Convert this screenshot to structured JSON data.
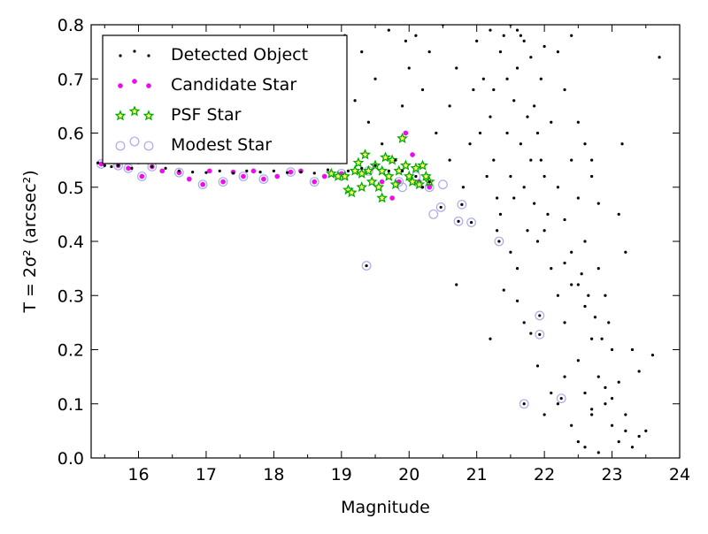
{
  "chart_data": {
    "type": "scatter",
    "xlabel": "Magnitude",
    "ylabel": "T = 2σ² (arcsec²)",
    "xlim": [
      15.3,
      24
    ],
    "ylim": [
      0.0,
      0.8
    ],
    "xticks": [
      "16",
      "17",
      "18",
      "19",
      "20",
      "21",
      "22",
      "23",
      "24"
    ],
    "yticks": [
      "0.0",
      "0.1",
      "0.2",
      "0.3",
      "0.4",
      "0.5",
      "0.6",
      "0.7",
      "0.8"
    ],
    "grid": false,
    "legend_position": "top-left",
    "series": [
      {
        "name": "Detected Object",
        "marker": "dot",
        "color": "#000000",
        "points": [
          [
            15.4,
            0.545
          ],
          [
            15.5,
            0.54
          ],
          [
            15.6,
            0.538
          ],
          [
            15.7,
            0.54
          ],
          [
            15.9,
            0.535
          ],
          [
            16.0,
            0.545
          ],
          [
            16.2,
            0.538
          ],
          [
            16.4,
            0.535
          ],
          [
            16.6,
            0.53
          ],
          [
            16.8,
            0.528
          ],
          [
            17.0,
            0.527
          ],
          [
            17.2,
            0.53
          ],
          [
            17.4,
            0.526
          ],
          [
            17.6,
            0.53
          ],
          [
            17.8,
            0.528
          ],
          [
            18.0,
            0.53
          ],
          [
            18.2,
            0.527
          ],
          [
            18.4,
            0.528
          ],
          [
            18.6,
            0.526
          ],
          [
            18.8,
            0.532
          ],
          [
            19.1,
            0.53
          ],
          [
            19.3,
            0.535
          ],
          [
            19.5,
            0.54
          ],
          [
            19.7,
            0.53
          ],
          [
            19.9,
            0.53
          ],
          [
            20.1,
            0.52
          ],
          [
            20.2,
            0.5
          ],
          [
            20.3,
            0.51
          ],
          [
            19.05,
            0.78
          ],
          [
            19.3,
            0.75
          ],
          [
            19.5,
            0.7
          ],
          [
            19.7,
            0.79
          ],
          [
            19.2,
            0.66
          ],
          [
            19.4,
            0.62
          ],
          [
            19.6,
            0.58
          ],
          [
            19.8,
            0.55
          ],
          [
            19.9,
            0.65
          ],
          [
            20.0,
            0.72
          ],
          [
            19.95,
            0.77
          ],
          [
            20.1,
            0.78
          ],
          [
            20.3,
            0.75
          ],
          [
            20.5,
            0.8
          ],
          [
            20.2,
            0.68
          ],
          [
            20.4,
            0.6
          ],
          [
            20.6,
            0.55
          ],
          [
            20.6,
            0.65
          ],
          [
            20.7,
            0.72
          ],
          [
            20.8,
            0.5
          ],
          [
            20.9,
            0.58
          ],
          [
            20.95,
            0.68
          ],
          [
            21.0,
            0.77
          ],
          [
            21.1,
            0.7
          ],
          [
            21.2,
            0.63
          ],
          [
            21.25,
            0.55
          ],
          [
            21.3,
            0.48
          ],
          [
            21.35,
            0.75
          ],
          [
            21.4,
            0.78
          ],
          [
            21.45,
            0.6
          ],
          [
            21.5,
            0.52
          ],
          [
            21.55,
            0.66
          ],
          [
            21.6,
            0.72
          ],
          [
            21.65,
            0.58
          ],
          [
            21.7,
            0.5
          ],
          [
            21.75,
            0.63
          ],
          [
            21.8,
            0.55
          ],
          [
            21.85,
            0.47
          ],
          [
            21.9,
            0.6
          ],
          [
            21.95,
            0.7
          ],
          [
            22.0,
            0.52
          ],
          [
            22.05,
            0.45
          ],
          [
            21.05,
            0.6
          ],
          [
            21.15,
            0.52
          ],
          [
            21.25,
            0.68
          ],
          [
            21.35,
            0.45
          ],
          [
            21.45,
            0.7
          ],
          [
            21.55,
            0.48
          ],
          [
            21.65,
            0.78
          ],
          [
            21.75,
            0.42
          ],
          [
            21.85,
            0.65
          ],
          [
            21.95,
            0.55
          ],
          [
            22.1,
            0.62
          ],
          [
            22.2,
            0.5
          ],
          [
            22.3,
            0.44
          ],
          [
            22.4,
            0.55
          ],
          [
            22.5,
            0.48
          ],
          [
            22.6,
            0.4
          ],
          [
            22.7,
            0.52
          ],
          [
            22.8,
            0.47
          ],
          [
            22.2,
            0.75
          ],
          [
            22.4,
            0.78
          ],
          [
            21.5,
            0.8
          ],
          [
            21.6,
            0.79
          ],
          [
            21.7,
            0.77
          ],
          [
            21.2,
            0.79
          ],
          [
            21.8,
            0.74
          ],
          [
            22.0,
            0.76
          ],
          [
            22.3,
            0.68
          ],
          [
            22.5,
            0.62
          ],
          [
            22.6,
            0.58
          ],
          [
            22.7,
            0.55
          ],
          [
            22.1,
            0.35
          ],
          [
            22.2,
            0.3
          ],
          [
            22.3,
            0.25
          ],
          [
            22.4,
            0.38
          ],
          [
            22.5,
            0.32
          ],
          [
            22.6,
            0.28
          ],
          [
            22.7,
            0.22
          ],
          [
            22.8,
            0.35
          ],
          [
            22.9,
            0.3
          ],
          [
            23.0,
            0.2
          ],
          [
            22.5,
            0.18
          ],
          [
            22.6,
            0.12
          ],
          [
            22.7,
            0.08
          ],
          [
            22.8,
            0.15
          ],
          [
            22.9,
            0.1
          ],
          [
            23.0,
            0.06
          ],
          [
            23.1,
            0.03
          ],
          [
            23.2,
            0.05
          ],
          [
            23.3,
            0.02
          ],
          [
            23.4,
            0.04
          ],
          [
            22.1,
            0.12
          ],
          [
            22.2,
            0.1
          ],
          [
            22.3,
            0.15
          ],
          [
            22.4,
            0.06
          ],
          [
            22.5,
            0.03
          ],
          [
            22.6,
            0.02
          ],
          [
            22.7,
            0.09
          ],
          [
            22.8,
            0.01
          ],
          [
            22.9,
            0.13
          ],
          [
            23.0,
            0.11
          ],
          [
            23.1,
            0.14
          ],
          [
            23.2,
            0.08
          ],
          [
            23.3,
            0.2
          ],
          [
            23.4,
            0.16
          ],
          [
            23.5,
            0.05
          ],
          [
            23.6,
            0.19
          ],
          [
            23.7,
            0.74
          ],
          [
            23.15,
            0.58
          ],
          [
            23.1,
            0.45
          ],
          [
            23.2,
            0.38
          ],
          [
            21.8,
            0.23
          ],
          [
            21.9,
            0.17
          ],
          [
            22.0,
            0.08
          ],
          [
            21.7,
            0.25
          ],
          [
            21.6,
            0.29
          ],
          [
            21.2,
            0.22
          ],
          [
            21.4,
            0.31
          ],
          [
            20.7,
            0.32
          ],
          [
            21.5,
            0.38
          ],
          [
            21.3,
            0.42
          ],
          [
            21.6,
            0.35
          ],
          [
            21.9,
            0.4
          ],
          [
            22.0,
            0.42
          ],
          [
            22.3,
            0.36
          ],
          [
            22.4,
            0.32
          ],
          [
            22.55,
            0.34
          ],
          [
            22.65,
            0.3
          ],
          [
            22.75,
            0.26
          ],
          [
            22.85,
            0.22
          ],
          [
            22.95,
            0.25
          ],
          [
            21.33,
            0.4
          ],
          [
            21.7,
            0.1
          ],
          [
            21.93,
            0.263
          ],
          [
            21.93,
            0.228
          ],
          [
            22.25,
            0.11
          ],
          [
            20.73,
            0.437
          ],
          [
            20.92,
            0.435
          ],
          [
            19.37,
            0.355
          ],
          [
            20.47,
            0.463
          ],
          [
            20.78,
            0.468
          ]
        ]
      },
      {
        "name": "Candidate Star",
        "marker": "circle",
        "color": "#ff00ff",
        "points": [
          [
            15.45,
            0.543
          ],
          [
            15.7,
            0.54
          ],
          [
            15.85,
            0.535
          ],
          [
            16.05,
            0.52
          ],
          [
            16.2,
            0.538
          ],
          [
            16.35,
            0.53
          ],
          [
            16.6,
            0.527
          ],
          [
            16.75,
            0.515
          ],
          [
            16.95,
            0.505
          ],
          [
            17.05,
            0.53
          ],
          [
            17.25,
            0.51
          ],
          [
            17.4,
            0.528
          ],
          [
            17.55,
            0.52
          ],
          [
            17.7,
            0.53
          ],
          [
            17.85,
            0.515
          ],
          [
            18.05,
            0.52
          ],
          [
            18.25,
            0.528
          ],
          [
            18.4,
            0.53
          ],
          [
            18.6,
            0.51
          ],
          [
            18.75,
            0.52
          ],
          [
            19.0,
            0.525
          ],
          [
            19.2,
            0.53
          ],
          [
            19.4,
            0.53
          ],
          [
            19.6,
            0.51
          ],
          [
            19.75,
            0.48
          ],
          [
            19.85,
            0.51
          ],
          [
            19.95,
            0.6
          ],
          [
            20.05,
            0.56
          ],
          [
            20.15,
            0.51
          ],
          [
            20.3,
            0.5
          ]
        ]
      },
      {
        "name": "PSF Star",
        "marker": "star",
        "color": "#00aa00",
        "points": [
          [
            18.85,
            0.525
          ],
          [
            18.95,
            0.52
          ],
          [
            19.05,
            0.52
          ],
          [
            19.1,
            0.495
          ],
          [
            19.15,
            0.49
          ],
          [
            19.2,
            0.53
          ],
          [
            19.25,
            0.545
          ],
          [
            19.3,
            0.525
          ],
          [
            19.35,
            0.56
          ],
          [
            19.4,
            0.53
          ],
          [
            19.45,
            0.51
          ],
          [
            19.5,
            0.54
          ],
          [
            19.55,
            0.5
          ],
          [
            19.6,
            0.53
          ],
          [
            19.65,
            0.555
          ],
          [
            19.7,
            0.52
          ],
          [
            19.75,
            0.55
          ],
          [
            19.8,
            0.505
          ],
          [
            19.85,
            0.53
          ],
          [
            19.9,
            0.59
          ],
          [
            19.95,
            0.54
          ],
          [
            20.0,
            0.52
          ],
          [
            20.05,
            0.51
          ],
          [
            20.1,
            0.535
          ],
          [
            20.15,
            0.505
          ],
          [
            20.2,
            0.54
          ],
          [
            20.25,
            0.52
          ],
          [
            20.3,
            0.51
          ],
          [
            19.6,
            0.48
          ],
          [
            19.3,
            0.5
          ]
        ]
      },
      {
        "name": "Modest Star",
        "marker": "open-circle",
        "color": "#aaaaee",
        "points": [
          [
            15.45,
            0.543
          ],
          [
            15.7,
            0.54
          ],
          [
            15.85,
            0.535
          ],
          [
            16.05,
            0.52
          ],
          [
            16.2,
            0.538
          ],
          [
            16.6,
            0.527
          ],
          [
            16.95,
            0.505
          ],
          [
            17.25,
            0.51
          ],
          [
            17.55,
            0.52
          ],
          [
            17.85,
            0.515
          ],
          [
            18.25,
            0.528
          ],
          [
            18.6,
            0.51
          ],
          [
            19.0,
            0.525
          ],
          [
            19.4,
            0.53
          ],
          [
            19.85,
            0.51
          ],
          [
            20.3,
            0.5
          ],
          [
            20.36,
            0.45
          ],
          [
            20.47,
            0.463
          ],
          [
            20.73,
            0.437
          ],
          [
            20.78,
            0.468
          ],
          [
            20.92,
            0.435
          ],
          [
            21.33,
            0.4
          ],
          [
            21.7,
            0.1
          ],
          [
            21.93,
            0.263
          ],
          [
            21.93,
            0.228
          ],
          [
            22.25,
            0.11
          ],
          [
            19.37,
            0.355
          ],
          [
            20.5,
            0.505
          ],
          [
            20.1,
            0.52
          ],
          [
            19.9,
            0.5
          ]
        ]
      }
    ]
  }
}
